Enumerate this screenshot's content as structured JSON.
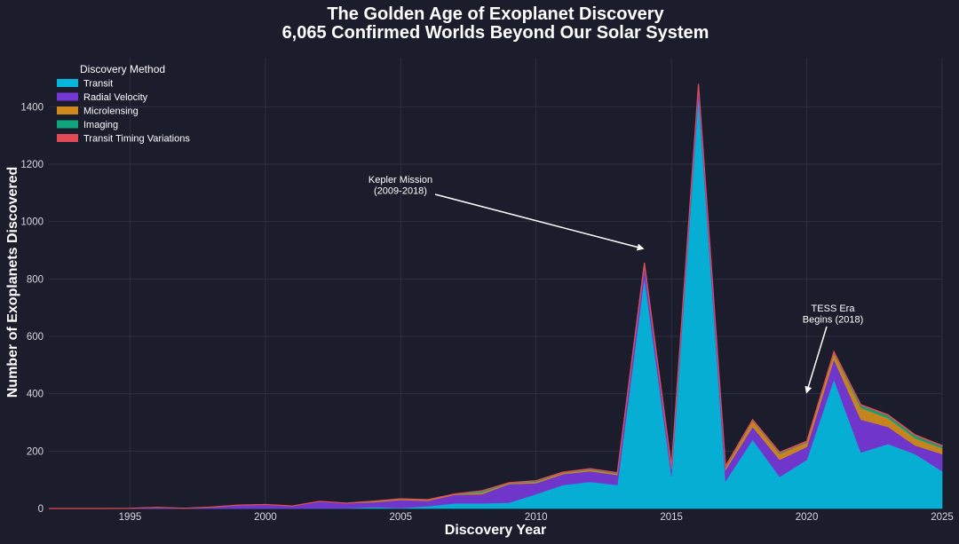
{
  "chart_data": {
    "type": "area",
    "stacked": true,
    "title": "The Golden Age of Exoplanet Discovery",
    "subtitle": "6,065 Confirmed Worlds Beyond Our Solar System",
    "xlabel": "Discovery Year",
    "ylabel": "Number of Exoplanets Discovered",
    "xlim": [
      1992,
      2025
    ],
    "ylim": [
      0,
      1500
    ],
    "xticks": [
      1995,
      2000,
      2005,
      2010,
      2015,
      2020,
      2025
    ],
    "yticks": [
      0,
      200,
      400,
      600,
      800,
      1000,
      1200,
      1400
    ],
    "grid": true,
    "legend": {
      "title": "Discovery Method",
      "placement": "top-left"
    },
    "x": [
      1992,
      1993,
      1994,
      1995,
      1996,
      1997,
      1998,
      1999,
      2000,
      2001,
      2002,
      2003,
      2004,
      2005,
      2006,
      2007,
      2008,
      2009,
      2010,
      2011,
      2012,
      2013,
      2014,
      2015,
      2016,
      2017,
      2018,
      2019,
      2020,
      2021,
      2022,
      2023,
      2024,
      2025
    ],
    "series": [
      {
        "name": "Transit",
        "color": "#06b6dc",
        "values": [
          0,
          0,
          0,
          0,
          0,
          0,
          0,
          0,
          0,
          0,
          1,
          1,
          5,
          2,
          8,
          18,
          18,
          20,
          50,
          82,
          93,
          82,
          805,
          112,
          1440,
          95,
          240,
          110,
          170,
          450,
          195,
          225,
          190,
          130
        ]
      },
      {
        "name": "Radial Velocity",
        "color": "#7537d3",
        "values": [
          0,
          0,
          0,
          1,
          4,
          1,
          5,
          12,
          14,
          9,
          24,
          18,
          17,
          28,
          19,
          30,
          32,
          65,
          38,
          38,
          37,
          35,
          40,
          25,
          30,
          40,
          45,
          60,
          45,
          70,
          115,
          60,
          30,
          60
        ]
      },
      {
        "name": "Microlensing",
        "color": "#d08a1c",
        "values": [
          0,
          0,
          0,
          0,
          0,
          0,
          0,
          0,
          0,
          0,
          0,
          0,
          2,
          3,
          3,
          2,
          6,
          3,
          5,
          4,
          5,
          4,
          6,
          6,
          5,
          8,
          20,
          20,
          15,
          20,
          40,
          30,
          25,
          20
        ]
      },
      {
        "name": "Imaging",
        "color": "#10a57c",
        "values": [
          0,
          0,
          0,
          0,
          0,
          0,
          0,
          0,
          0,
          0,
          0,
          0,
          2,
          1,
          1,
          1,
          6,
          2,
          4,
          2,
          3,
          3,
          4,
          4,
          3,
          4,
          3,
          4,
          3,
          5,
          10,
          10,
          10,
          8
        ]
      },
      {
        "name": "Transit Timing Variations",
        "color": "#e04b55",
        "values": [
          0,
          0,
          0,
          0,
          0,
          0,
          0,
          0,
          0,
          0,
          0,
          0,
          0,
          0,
          0,
          0,
          0,
          0,
          0,
          1,
          1,
          1,
          2,
          1,
          2,
          1,
          2,
          2,
          2,
          2,
          2,
          2,
          2,
          2
        ]
      }
    ],
    "annotations": [
      {
        "text_lines": [
          "Kepler Mission",
          "(2009-2018)"
        ],
        "point": [
          2014,
          900
        ]
      },
      {
        "text_lines": [
          "TESS Era",
          "Begins (2018)"
        ],
        "point": [
          2020,
          400
        ]
      }
    ]
  }
}
